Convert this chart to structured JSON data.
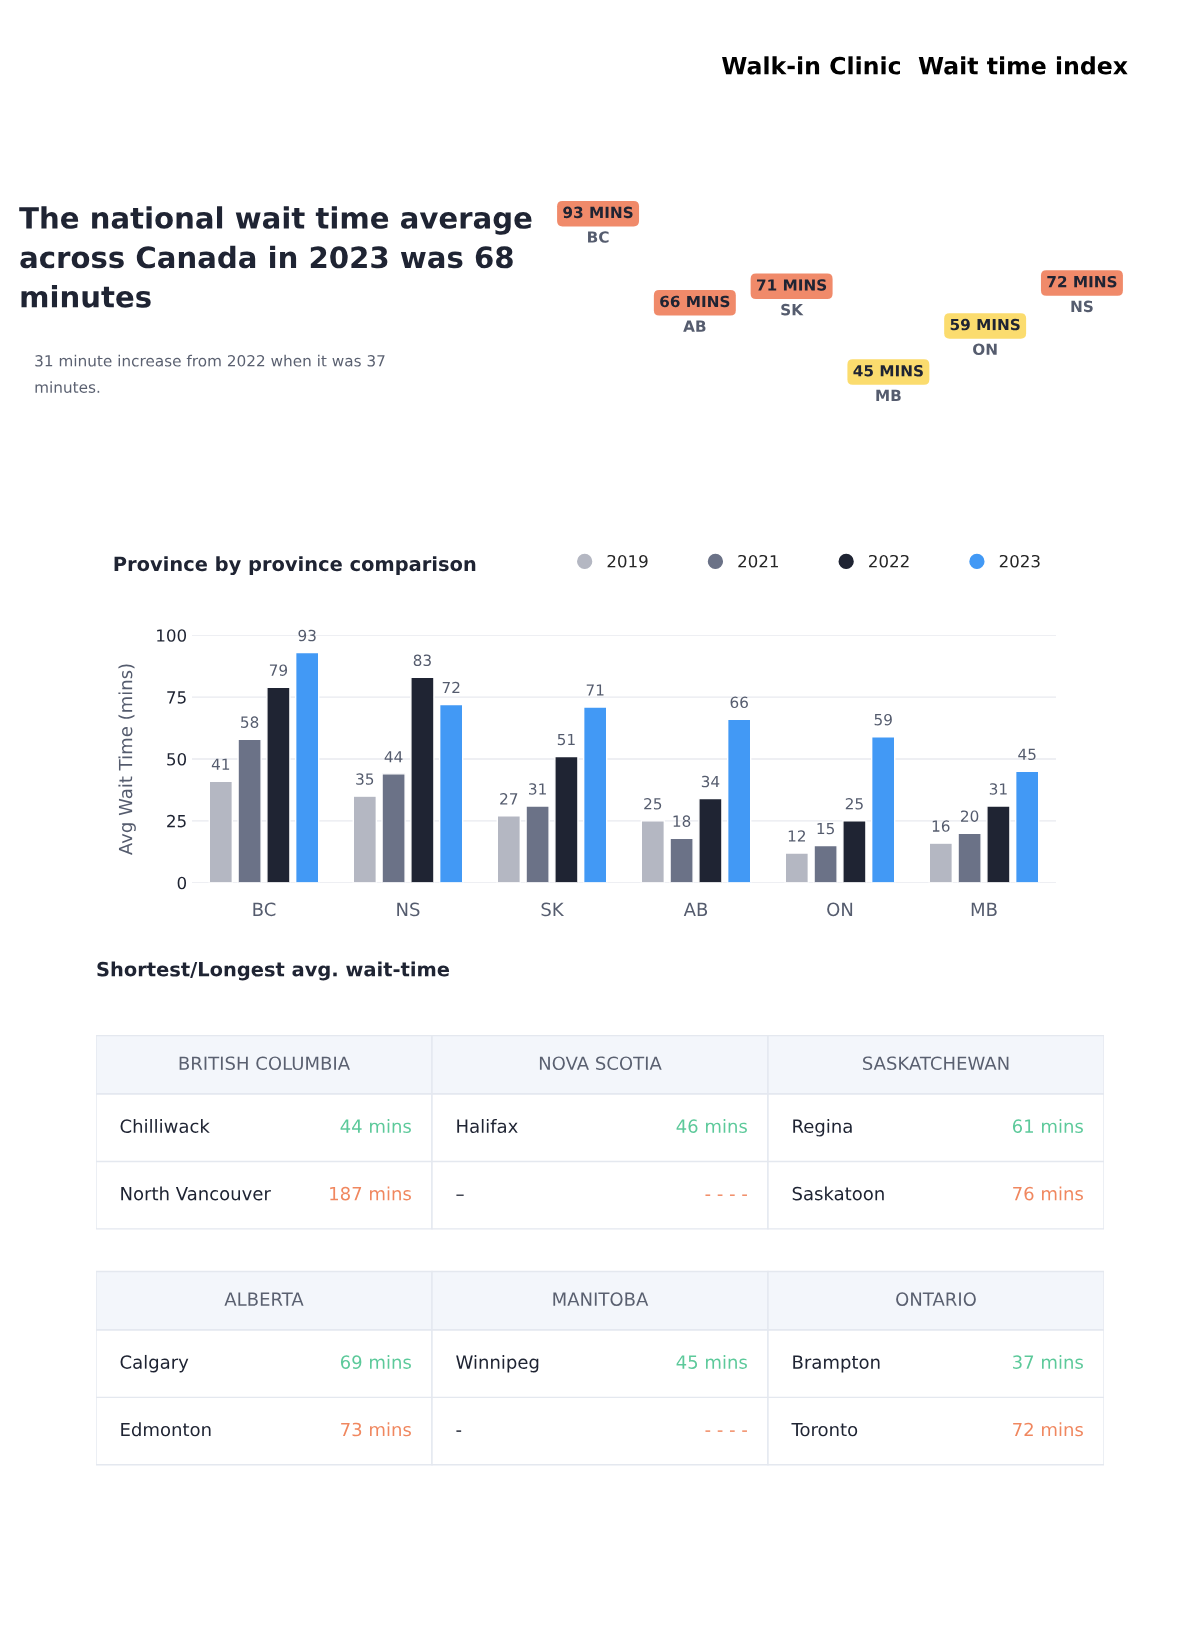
{
  "chart_data": [
    {
      "type": "other",
      "title": "The national wait time average across Canada in 2023 was 68 minutes",
      "subtitle": "31 minute increase from 2022 when it was 37 minutes.",
      "annotations": [
        "Walk-in Clinic  Wait time index"
      ]
    },
    {
      "type": "other",
      "categories": [
        "BC",
        "AB",
        "SK",
        "MB",
        "ON",
        "NS"
      ],
      "values": [
        93,
        66,
        71,
        45,
        59,
        72
      ],
      "value_labels": [
        "93 MINS",
        "66 MINS",
        "71 MINS",
        "45 MINS",
        "59 MINS",
        "72 MINS"
      ],
      "colors": [
        "#f08a6a",
        "#f08a6a",
        "#f08a6a",
        "#fbdc6e",
        "#fbdc6e",
        "#f08a6a"
      ]
    },
    {
      "type": "bar",
      "title": "Province by province comparison",
      "ylabel": "Avg Wait Time (mins)",
      "categories": [
        "BC",
        "NS",
        "SK",
        "AB",
        "ON",
        "MB"
      ],
      "series": [
        {
          "name": "2019",
          "color": "#b4b7c2",
          "values": [
            41,
            35,
            27,
            25,
            12,
            16
          ]
        },
        {
          "name": "2021",
          "color": "#6b7287",
          "values": [
            58,
            44,
            31,
            18,
            15,
            20
          ]
        },
        {
          "name": "2022",
          "color": "#1f2433",
          "values": [
            79,
            83,
            51,
            34,
            25,
            31
          ]
        },
        {
          "name": "2023",
          "color": "#4299f5",
          "values": [
            93,
            72,
            71,
            66,
            59,
            45
          ]
        }
      ],
      "ylim": [
        0,
        100
      ],
      "yticks": [
        0,
        25,
        50,
        75,
        100
      ],
      "grid": "y",
      "legend": "top right",
      "data_labels": true
    },
    {
      "type": "other",
      "title": "Shortest/Longest avg. wait-time",
      "colors": [
        "#5cc99a",
        "#f0875f"
      ],
      "annotations": [
        "BRITISH COLUMBIA",
        "Chilliwack",
        "44 mins",
        "North Vancouver",
        "187 mins",
        "NOVA SCOTIA",
        "Halifax",
        "46 mins",
        "–",
        "- - - -",
        "SASKATCHEWAN",
        "Regina",
        "61 mins",
        "Saskatoon",
        "76 mins",
        "ALBERTA",
        "Calgary",
        "69 mins",
        "Edmonton",
        "73 mins",
        "MANITOBA",
        "Winnipeg",
        "45 mins",
        "-",
        "- - - -",
        "ONTARIO",
        "Brampton",
        "37 mins",
        "Toronto",
        "72 mins"
      ]
    }
  ]
}
